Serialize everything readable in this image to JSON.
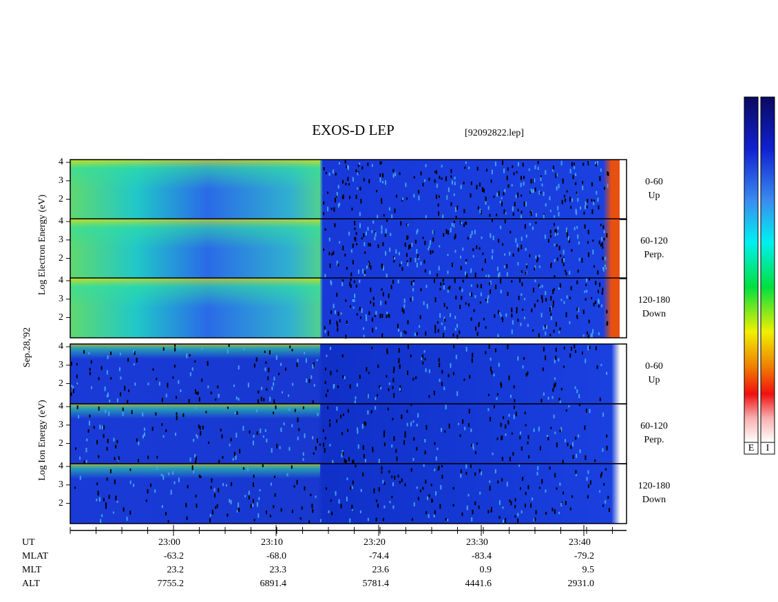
{
  "chart_data": {
    "type": "spectrogram",
    "title": "EXOS-D LEP",
    "file": "[92092822.lep]",
    "date": "Sep.28,'92",
    "groups": [
      {
        "axis_label": "Log Electron Energy (eV)",
        "panels": [
          {
            "label": [
              "0-60",
              "Up"
            ]
          },
          {
            "label": [
              "60-120",
              "Perp."
            ]
          },
          {
            "label": [
              "120-180",
              "Down"
            ]
          }
        ]
      },
      {
        "axis_label": "Log Ion Energy (eV)",
        "panels": [
          {
            "label": [
              "0-60",
              "Up"
            ]
          },
          {
            "label": [
              "60-120",
              "Perp."
            ]
          },
          {
            "label": [
              "120-180",
              "Down"
            ]
          }
        ]
      }
    ],
    "ylim": [
      0.9,
      4.15
    ],
    "yticks": [
      2,
      3,
      4
    ],
    "ephemeris": {
      "row_labels": [
        "UT",
        "MLAT",
        "MLT",
        "ALT"
      ],
      "columns": [
        [
          "23:00",
          "-63.2",
          "23.2",
          "7755.2"
        ],
        [
          "23:10",
          "-68.0",
          "23.3",
          "6891.4"
        ],
        [
          "23:20",
          "-74.4",
          "23.6",
          "5781.4"
        ],
        [
          "23:30",
          "-83.4",
          "0.9",
          "4441.6"
        ],
        [
          "23:40",
          "-79.2",
          "9.5",
          "2931.0"
        ]
      ]
    },
    "colorbars": [
      "E",
      "I"
    ]
  }
}
